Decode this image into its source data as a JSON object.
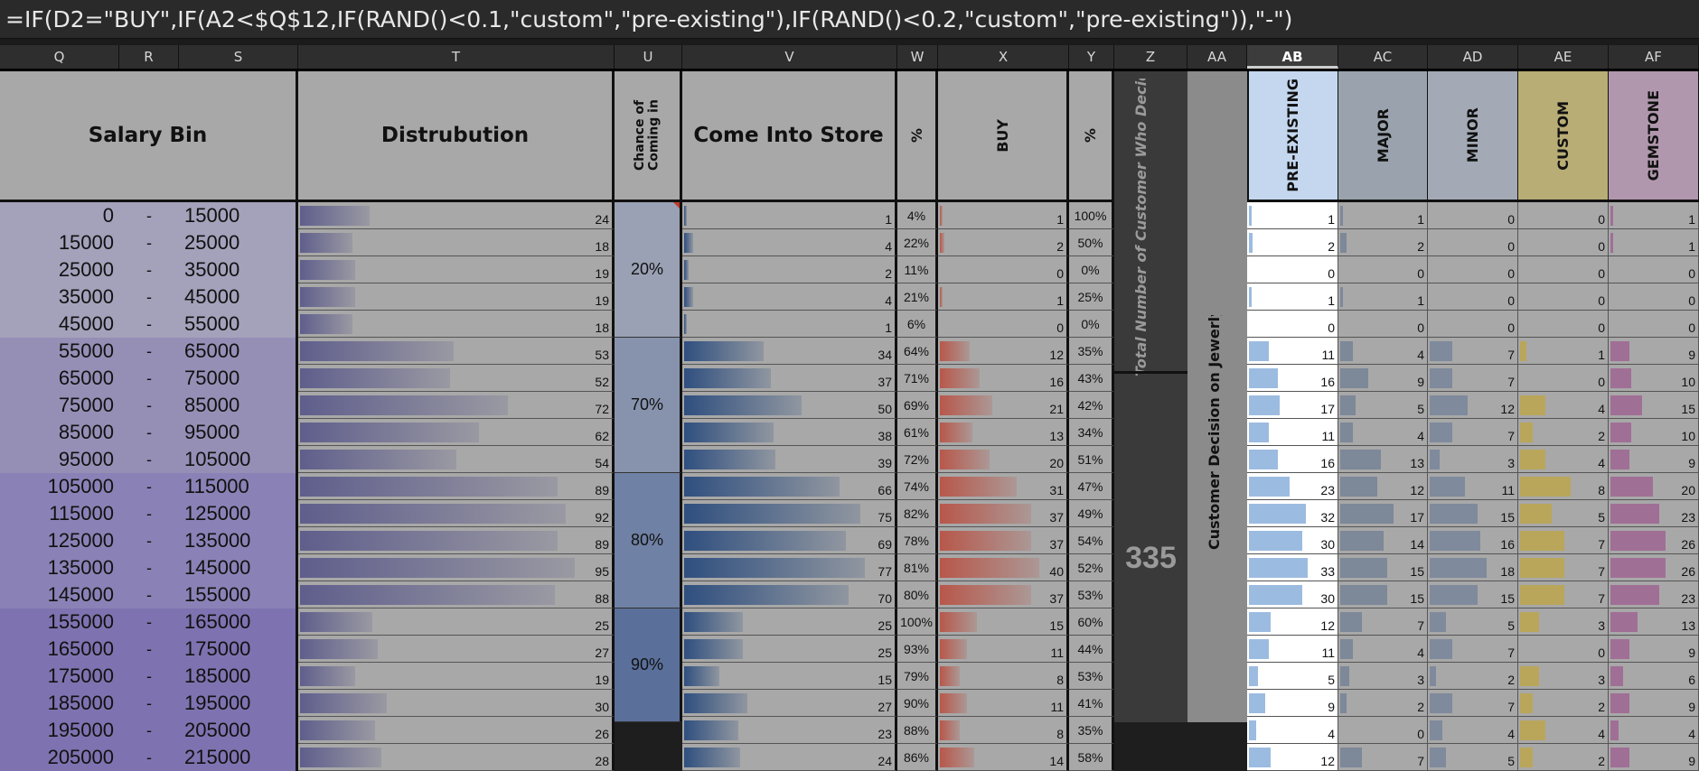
{
  "formula": "=IF(D2=\"BUY\",IF(A2<$Q$12,IF(RAND()<0.1,\"custom\",\"pre-existing\"),IF(RAND()<0.2,\"custom\",\"pre-existing\")),\"-\")",
  "selected_column": "AB",
  "column_letters": [
    "Q",
    "R",
    "S",
    "T",
    "U",
    "V",
    "W",
    "X",
    "Y",
    "Z",
    "AA",
    "AB",
    "AC",
    "AD",
    "AE",
    "AF"
  ],
  "headers": {
    "salary_bin": "Salary Bin",
    "distribution": "Distrubution",
    "chance": "Chance of Coming in",
    "come_into_store": "Come Into Store",
    "pct_w": "%",
    "buy": "BUY",
    "pct_y": "%",
    "total_customers": "Total Number of Customer Who Decided to Bu",
    "decision": "Customer Decision on Jewerly",
    "pre_existing": "PRE-EXISTING",
    "major": "MAJOR",
    "minor": "MINOR",
    "custom": "CUSTOM",
    "gemstone": "GEMSTONE"
  },
  "bin_separator": "-",
  "total_value": "335",
  "chance_groups": [
    "20%",
    "70%",
    "80%",
    "90%"
  ],
  "rows": [
    {
      "lo": "0",
      "hi": "15000",
      "dist": 24,
      "come": 1,
      "w": "4%",
      "buy": 1,
      "y": "100%",
      "pre": 1,
      "major": 1,
      "minor": 0,
      "custom": 0,
      "gem": 1
    },
    {
      "lo": "15000",
      "hi": "25000",
      "dist": 18,
      "come": 4,
      "w": "22%",
      "buy": 2,
      "y": "50%",
      "pre": 2,
      "major": 2,
      "minor": 0,
      "custom": 0,
      "gem": 1
    },
    {
      "lo": "25000",
      "hi": "35000",
      "dist": 19,
      "come": 2,
      "w": "11%",
      "buy": 0,
      "y": "0%",
      "pre": 0,
      "major": 0,
      "minor": 0,
      "custom": 0,
      "gem": 0
    },
    {
      "lo": "35000",
      "hi": "45000",
      "dist": 19,
      "come": 4,
      "w": "21%",
      "buy": 1,
      "y": "25%",
      "pre": 1,
      "major": 1,
      "minor": 0,
      "custom": 0,
      "gem": 0
    },
    {
      "lo": "45000",
      "hi": "55000",
      "dist": 18,
      "come": 1,
      "w": "6%",
      "buy": 0,
      "y": "0%",
      "pre": 0,
      "major": 0,
      "minor": 0,
      "custom": 0,
      "gem": 0
    },
    {
      "lo": "55000",
      "hi": "65000",
      "dist": 53,
      "come": 34,
      "w": "64%",
      "buy": 12,
      "y": "35%",
      "pre": 11,
      "major": 4,
      "minor": 7,
      "custom": 1,
      "gem": 9
    },
    {
      "lo": "65000",
      "hi": "75000",
      "dist": 52,
      "come": 37,
      "w": "71%",
      "buy": 16,
      "y": "43%",
      "pre": 16,
      "major": 9,
      "minor": 7,
      "custom": 0,
      "gem": 10
    },
    {
      "lo": "75000",
      "hi": "85000",
      "dist": 72,
      "come": 50,
      "w": "69%",
      "buy": 21,
      "y": "42%",
      "pre": 17,
      "major": 5,
      "minor": 12,
      "custom": 4,
      "gem": 15
    },
    {
      "lo": "85000",
      "hi": "95000",
      "dist": 62,
      "come": 38,
      "w": "61%",
      "buy": 13,
      "y": "34%",
      "pre": 11,
      "major": 4,
      "minor": 7,
      "custom": 2,
      "gem": 10
    },
    {
      "lo": "95000",
      "hi": "105000",
      "dist": 54,
      "come": 39,
      "w": "72%",
      "buy": 20,
      "y": "51%",
      "pre": 16,
      "major": 13,
      "minor": 3,
      "custom": 4,
      "gem": 9
    },
    {
      "lo": "105000",
      "hi": "115000",
      "dist": 89,
      "come": 66,
      "w": "74%",
      "buy": 31,
      "y": "47%",
      "pre": 23,
      "major": 12,
      "minor": 11,
      "custom": 8,
      "gem": 20
    },
    {
      "lo": "115000",
      "hi": "125000",
      "dist": 92,
      "come": 75,
      "w": "82%",
      "buy": 37,
      "y": "49%",
      "pre": 32,
      "major": 17,
      "minor": 15,
      "custom": 5,
      "gem": 23
    },
    {
      "lo": "125000",
      "hi": "135000",
      "dist": 89,
      "come": 69,
      "w": "78%",
      "buy": 37,
      "y": "54%",
      "pre": 30,
      "major": 14,
      "minor": 16,
      "custom": 7,
      "gem": 26
    },
    {
      "lo": "135000",
      "hi": "145000",
      "dist": 95,
      "come": 77,
      "w": "81%",
      "buy": 40,
      "y": "52%",
      "pre": 33,
      "major": 15,
      "minor": 18,
      "custom": 7,
      "gem": 26
    },
    {
      "lo": "145000",
      "hi": "155000",
      "dist": 88,
      "come": 70,
      "w": "80%",
      "buy": 37,
      "y": "53%",
      "pre": 30,
      "major": 15,
      "minor": 15,
      "custom": 7,
      "gem": 23
    },
    {
      "lo": "155000",
      "hi": "165000",
      "dist": 25,
      "come": 25,
      "w": "100%",
      "buy": 15,
      "y": "60%",
      "pre": 12,
      "major": 7,
      "minor": 5,
      "custom": 3,
      "gem": 13
    },
    {
      "lo": "165000",
      "hi": "175000",
      "dist": 27,
      "come": 25,
      "w": "93%",
      "buy": 11,
      "y": "44%",
      "pre": 11,
      "major": 4,
      "minor": 7,
      "custom": 0,
      "gem": 9
    },
    {
      "lo": "175000",
      "hi": "185000",
      "dist": 19,
      "come": 15,
      "w": "79%",
      "buy": 8,
      "y": "53%",
      "pre": 5,
      "major": 3,
      "minor": 2,
      "custom": 3,
      "gem": 6
    },
    {
      "lo": "185000",
      "hi": "195000",
      "dist": 30,
      "come": 27,
      "w": "90%",
      "buy": 11,
      "y": "41%",
      "pre": 9,
      "major": 2,
      "minor": 7,
      "custom": 2,
      "gem": 9
    },
    {
      "lo": "195000",
      "hi": "205000",
      "dist": 26,
      "come": 23,
      "w": "88%",
      "buy": 8,
      "y": "35%",
      "pre": 4,
      "major": 0,
      "minor": 4,
      "custom": 4,
      "gem": 4
    },
    {
      "lo": "205000",
      "hi": "215000",
      "dist": 28,
      "come": 24,
      "w": "86%",
      "buy": 14,
      "y": "58%",
      "pre": 12,
      "major": 7,
      "minor": 5,
      "custom": 2,
      "gem": 9
    }
  ],
  "colors": {
    "salary_groups": [
      "#a4a1bb",
      "#958fb6",
      "#8a82b6",
      "#7e73b0"
    ],
    "chance_groups": [
      "#9aa1b4",
      "#8793ad",
      "#6f81a4",
      "#5a6f99"
    ],
    "grey_cell": "#a8a8a8",
    "dist_bar": "#5f5e8c",
    "come_bar": "#2f4f7f",
    "buy_bar": "#b8574a",
    "pre_bar": "#9cbbe0",
    "major_bar": "#7d8898",
    "minor_bar": "#7f8a9c",
    "custom_bar": "#b9a65a",
    "gem_bar": "#a06f96",
    "pre_bg": "#ffffff",
    "pre_header": "#c4d7ee",
    "major_header": "#9aa3ad",
    "minor_header": "#a3aab5",
    "custom_header": "#b9ad76",
    "gem_header": "#b197ad",
    "dark_block": "#3a3a3a",
    "decision_block": "#8b8b8b"
  }
}
